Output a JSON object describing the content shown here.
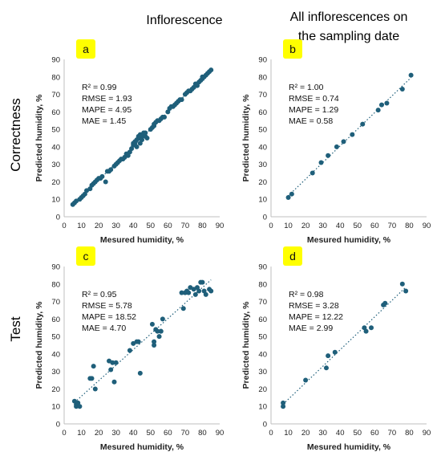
{
  "column_titles": [
    "Inflorescence",
    "All inflorescences on\nthe sampling date"
  ],
  "row_titles": [
    "Correctness",
    "Test"
  ],
  "colors": {
    "point": "#1f5f7a",
    "trendline": "#1f5f7a",
    "badge": "#ffff00",
    "axis": "#bfbfbf"
  },
  "chart_data": [
    {
      "panel": "a",
      "type": "scatter",
      "xlabel": "Mesured humidity, %",
      "ylabel": "Predicted humidity, %",
      "xlim": [
        0,
        90
      ],
      "ylim": [
        0,
        90
      ],
      "ticks": [
        0,
        10,
        20,
        30,
        40,
        50,
        60,
        70,
        80,
        90
      ],
      "trendline": "dotted",
      "stats": [
        "R² = 0.99",
        "RMSE =  1.93",
        "MAPE = 4.95",
        "MAE = 1.45"
      ],
      "x": [
        5,
        6,
        7,
        9,
        10,
        11,
        12,
        13,
        15,
        16,
        17,
        18,
        19,
        20,
        21,
        22,
        24,
        25,
        26,
        27,
        29,
        30,
        31,
        32,
        33,
        34,
        35,
        36,
        37,
        38,
        39,
        40,
        40,
        41,
        41,
        42,
        42,
        43,
        43,
        44,
        44,
        45,
        45,
        46,
        46,
        47,
        47,
        48,
        50,
        51,
        52,
        52,
        53,
        54,
        55,
        56,
        57,
        58,
        60,
        61,
        62,
        63,
        64,
        65,
        66,
        67,
        68,
        70,
        71,
        72,
        73,
        74,
        75,
        76,
        77,
        78,
        79,
        80,
        80,
        81,
        82,
        83,
        84,
        85
      ],
      "y": [
        7,
        8,
        9,
        10,
        11,
        12,
        13,
        15,
        16,
        18,
        19,
        20,
        21,
        22,
        22,
        23,
        20,
        26,
        26,
        27,
        29,
        30,
        31,
        32,
        33,
        33,
        34,
        36,
        35,
        37,
        39,
        41,
        42,
        42,
        43,
        44,
        40,
        45,
        46,
        47,
        42,
        46,
        44,
        48,
        47,
        46,
        48,
        45,
        50,
        51,
        53,
        52,
        54,
        55,
        55,
        56,
        57,
        57,
        60,
        62,
        63,
        63,
        64,
        65,
        66,
        67,
        67,
        70,
        71,
        72,
        72,
        73,
        74,
        76,
        75,
        77,
        78,
        79,
        80,
        80,
        81,
        82,
        83,
        84
      ]
    },
    {
      "panel": "b",
      "type": "scatter",
      "xlabel": "Mesured humidity, %",
      "ylabel": "Predicted humidity, %",
      "xlim": [
        0,
        90
      ],
      "ylim": [
        0,
        90
      ],
      "ticks": [
        0,
        10,
        20,
        30,
        40,
        50,
        60,
        70,
        80,
        90
      ],
      "trendline": "dotted",
      "stats": [
        "R² = 1.00",
        "RMSE = 0.74",
        "MAPE = 1.29",
        "MAE = 0.58"
      ],
      "x": [
        10,
        12,
        24,
        29,
        33,
        38,
        42,
        47,
        53,
        62,
        64,
        67,
        76,
        81
      ],
      "y": [
        11,
        13,
        25,
        31,
        35,
        40,
        43,
        47,
        53,
        61,
        64,
        65,
        73,
        81
      ]
    },
    {
      "panel": "c",
      "type": "scatter",
      "xlabel": "Mesured humidity, %",
      "ylabel": "Predicted humidity, %",
      "xlim": [
        0,
        90
      ],
      "ylim": [
        0,
        90
      ],
      "ticks": [
        0,
        10,
        20,
        30,
        40,
        50,
        60,
        70,
        80,
        90
      ],
      "trendline": "dotted",
      "stats": [
        "R² = 0.95",
        "RMSE =  5.78",
        "MAPE = 18.52",
        "MAE = 4.70"
      ],
      "x": [
        6,
        7,
        7,
        8,
        9,
        15,
        16,
        17,
        18,
        26,
        27,
        28,
        29,
        30,
        38,
        40,
        42,
        43,
        44,
        51,
        52,
        52,
        53,
        54,
        55,
        56,
        56,
        57,
        68,
        69,
        70,
        71,
        72,
        73,
        75,
        76,
        77,
        78,
        79,
        80,
        81,
        82,
        84,
        85
      ],
      "y": [
        13,
        11,
        10,
        12,
        10,
        26,
        26,
        33,
        20,
        36,
        31,
        35,
        24,
        35,
        42,
        46,
        47,
        47,
        29,
        57,
        47,
        45,
        54,
        53,
        50,
        53,
        53,
        60,
        75,
        66,
        75,
        76,
        75,
        78,
        77,
        74,
        78,
        76,
        81,
        81,
        76,
        74,
        77,
        76
      ]
    },
    {
      "panel": "d",
      "type": "scatter",
      "xlabel": "Mesured humidity, %",
      "ylabel": "Predicted humidity, %",
      "xlim": [
        0,
        90
      ],
      "ylim": [
        0,
        90
      ],
      "ticks": [
        0,
        10,
        20,
        30,
        40,
        50,
        60,
        70,
        80,
        90
      ],
      "trendline": "dotted",
      "stats": [
        "R² = 0.98",
        "RMSE = 3.28",
        "MAPE = 12.22",
        "MAE = 2.99"
      ],
      "x": [
        7,
        7,
        20,
        32,
        33,
        37,
        54,
        55,
        58,
        65,
        66,
        76,
        78
      ],
      "y": [
        12,
        10,
        25,
        32,
        39,
        41,
        55,
        53,
        55,
        68,
        69,
        80,
        76
      ]
    }
  ]
}
